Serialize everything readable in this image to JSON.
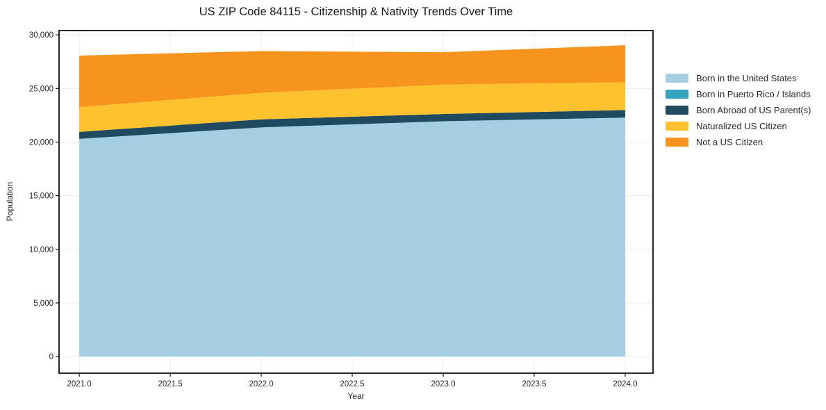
{
  "chart_data": {
    "type": "area",
    "stacked": true,
    "title": "US ZIP Code 84115 - Citizenship & Nativity Trends Over Time",
    "xlabel": "Year",
    "ylabel": "Population",
    "x": [
      2021,
      2022,
      2023,
      2024
    ],
    "series": [
      {
        "name": "Born in the United States",
        "color": "#a5cee3",
        "values": [
          20300,
          21370,
          21940,
          22280
        ]
      },
      {
        "name": "Born in Puerto Rico / Islands",
        "color": "#35a2be",
        "values": [
          0,
          0,
          0,
          0
        ]
      },
      {
        "name": "Born Abroad of US Parent(s)",
        "color": "#1f4a5f",
        "values": [
          650,
          750,
          680,
          710
        ]
      },
      {
        "name": "Naturalized US Citizen",
        "color": "#fdc22d",
        "values": [
          2310,
          2480,
          2740,
          2590
        ]
      },
      {
        "name": "Not a US Citizen",
        "color": "#f7941e",
        "values": [
          4810,
          3890,
          3020,
          3450
        ]
      }
    ],
    "totals": [
      28070,
      28490,
      28380,
      29030
    ],
    "xlim": [
      2020.889,
      2024.153
    ],
    "ylim": [
      -1550,
      30400
    ],
    "x_ticks": {
      "values": [
        2021,
        2021.5,
        2022,
        2022.5,
        2023,
        2023.5,
        2024
      ],
      "labels": [
        "2021.0",
        "2021.5",
        "2022.0",
        "2022.5",
        "2023.0",
        "2023.5",
        "2024.0"
      ]
    },
    "y_ticks": {
      "values": [
        0,
        5000,
        10000,
        15000,
        20000,
        25000,
        30000
      ],
      "labels": [
        "0",
        "5,000",
        "10,000",
        "15,000",
        "20,000",
        "25,000",
        "30,000"
      ]
    },
    "grid": true,
    "legend_position": "right",
    "colors": {
      "grid": "#ececec",
      "spine": "#111111",
      "text": "#262626",
      "background": "#ffffff"
    }
  }
}
